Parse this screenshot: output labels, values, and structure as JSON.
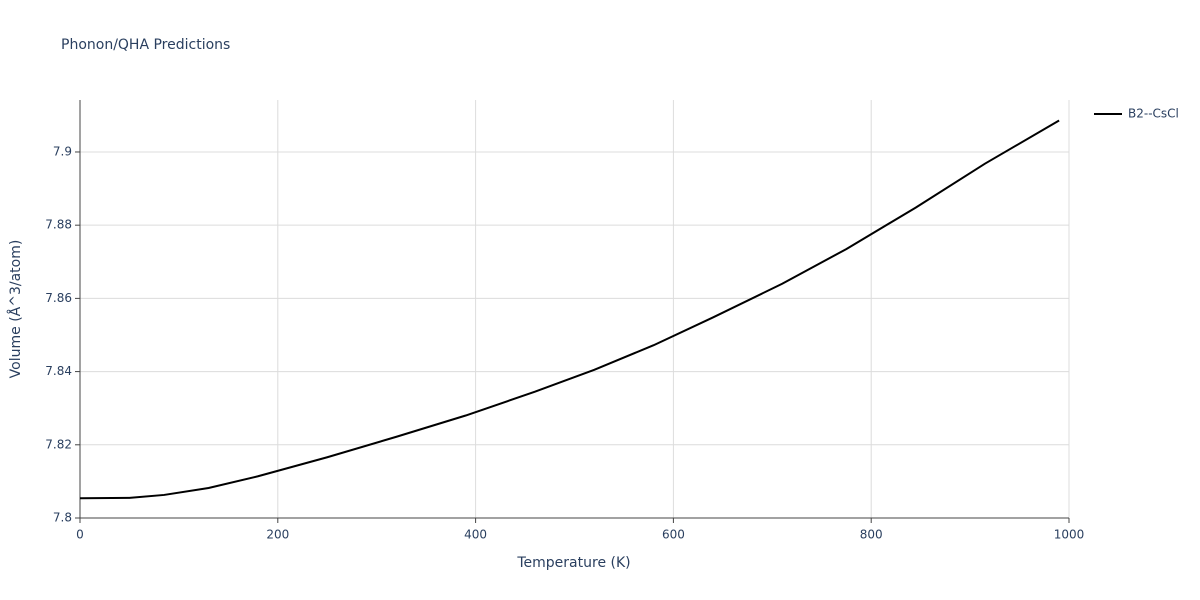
{
  "chart_data": {
    "type": "line",
    "title": "Phonon/QHA Predictions",
    "x_label": "Temperature (K)",
    "y_label": "Volume (Å^3/atom)",
    "x": [
      0,
      50,
      85,
      130,
      180,
      250,
      320,
      390,
      460,
      520,
      580,
      640,
      710,
      775,
      845,
      915,
      990
    ],
    "series": [
      {
        "name": "B2--CsCl",
        "color": "#000000",
        "values": [
          7.8054,
          7.8055,
          7.8063,
          7.8082,
          7.8114,
          7.8166,
          7.8222,
          7.828,
          7.8345,
          7.8405,
          7.8472,
          7.8548,
          7.864,
          7.8735,
          7.8848,
          7.8968,
          7.9086
        ]
      }
    ],
    "xlim": [
      0,
      1000
    ],
    "xticks": [
      0,
      200,
      400,
      600,
      800,
      1000
    ],
    "ylim": [
      7.8,
      7.9142
    ],
    "yticks": [
      7.8,
      7.82,
      7.84,
      7.86,
      7.88,
      7.9
    ],
    "grid": true,
    "legend": "right"
  }
}
